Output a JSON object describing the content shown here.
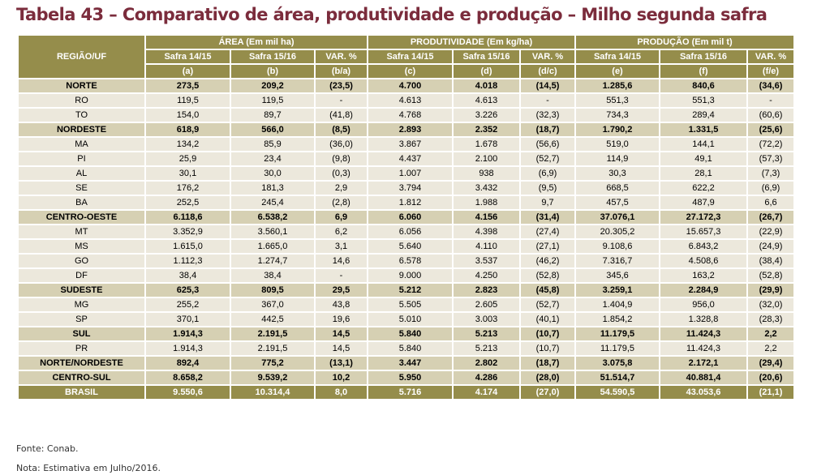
{
  "title": "Tabela 43 – Comparativo de área, produtividade e produção – Milho segunda safra",
  "header": {
    "region": "REGIÃO/UF",
    "groups": [
      "ÁREA (Em mil ha)",
      "PRODUTIVIDADE (Em kg/ha)",
      "PRODUÇÃO (Em mil t)"
    ],
    "subcols": [
      "Safra 14/15",
      "Safra 15/16",
      "VAR. %",
      "Safra 14/15",
      "Safra 15/16",
      "VAR. %",
      "Safra 14/15",
      "Safra 15/16",
      "VAR. %"
    ],
    "letters": [
      "(a)",
      "(b)",
      "(b/a)",
      "(c)",
      "(d)",
      "(d/c)",
      "(e)",
      "(f)",
      "(f/e)"
    ]
  },
  "rows": [
    {
      "type": "sub",
      "cells": [
        "NORTE",
        "273,5",
        "209,2",
        "(23,5)",
        "4.700",
        "4.018",
        "(14,5)",
        "1.285,6",
        "840,6",
        "(34,6)"
      ]
    },
    {
      "type": "uf",
      "cells": [
        "RO",
        "119,5",
        "119,5",
        "-",
        "4.613",
        "4.613",
        "-",
        "551,3",
        "551,3",
        "-"
      ]
    },
    {
      "type": "uf",
      "cells": [
        "TO",
        "154,0",
        "89,7",
        "(41,8)",
        "4.768",
        "3.226",
        "(32,3)",
        "734,3",
        "289,4",
        "(60,6)"
      ]
    },
    {
      "type": "sub",
      "cells": [
        "NORDESTE",
        "618,9",
        "566,0",
        "(8,5)",
        "2.893",
        "2.352",
        "(18,7)",
        "1.790,2",
        "1.331,5",
        "(25,6)"
      ]
    },
    {
      "type": "uf",
      "cells": [
        "MA",
        "134,2",
        "85,9",
        "(36,0)",
        "3.867",
        "1.678",
        "(56,6)",
        "519,0",
        "144,1",
        "(72,2)"
      ]
    },
    {
      "type": "uf",
      "cells": [
        "PI",
        "25,9",
        "23,4",
        "(9,8)",
        "4.437",
        "2.100",
        "(52,7)",
        "114,9",
        "49,1",
        "(57,3)"
      ]
    },
    {
      "type": "uf",
      "cells": [
        "AL",
        "30,1",
        "30,0",
        "(0,3)",
        "1.007",
        "938",
        "(6,9)",
        "30,3",
        "28,1",
        "(7,3)"
      ]
    },
    {
      "type": "uf",
      "cells": [
        "SE",
        "176,2",
        "181,3",
        "2,9",
        "3.794",
        "3.432",
        "(9,5)",
        "668,5",
        "622,2",
        "(6,9)"
      ]
    },
    {
      "type": "uf",
      "cells": [
        "BA",
        "252,5",
        "245,4",
        "(2,8)",
        "1.812",
        "1.988",
        "9,7",
        "457,5",
        "487,9",
        "6,6"
      ]
    },
    {
      "type": "sub",
      "cells": [
        "CENTRO-OESTE",
        "6.118,6",
        "6.538,2",
        "6,9",
        "6.060",
        "4.156",
        "(31,4)",
        "37.076,1",
        "27.172,3",
        "(26,7)"
      ]
    },
    {
      "type": "uf",
      "cells": [
        "MT",
        "3.352,9",
        "3.560,1",
        "6,2",
        "6.056",
        "4.398",
        "(27,4)",
        "20.305,2",
        "15.657,3",
        "(22,9)"
      ]
    },
    {
      "type": "uf",
      "cells": [
        "MS",
        "1.615,0",
        "1.665,0",
        "3,1",
        "5.640",
        "4.110",
        "(27,1)",
        "9.108,6",
        "6.843,2",
        "(24,9)"
      ]
    },
    {
      "type": "uf",
      "cells": [
        "GO",
        "1.112,3",
        "1.274,7",
        "14,6",
        "6.578",
        "3.537",
        "(46,2)",
        "7.316,7",
        "4.508,6",
        "(38,4)"
      ]
    },
    {
      "type": "uf",
      "cells": [
        "DF",
        "38,4",
        "38,4",
        "-",
        "9.000",
        "4.250",
        "(52,8)",
        "345,6",
        "163,2",
        "(52,8)"
      ]
    },
    {
      "type": "sub",
      "cells": [
        "SUDESTE",
        "625,3",
        "809,5",
        "29,5",
        "5.212",
        "2.823",
        "(45,8)",
        "3.259,1",
        "2.284,9",
        "(29,9)"
      ]
    },
    {
      "type": "uf",
      "cells": [
        "MG",
        "255,2",
        "367,0",
        "43,8",
        "5.505",
        "2.605",
        "(52,7)",
        "1.404,9",
        "956,0",
        "(32,0)"
      ]
    },
    {
      "type": "uf",
      "cells": [
        "SP",
        "370,1",
        "442,5",
        "19,6",
        "5.010",
        "3.003",
        "(40,1)",
        "1.854,2",
        "1.328,8",
        "(28,3)"
      ]
    },
    {
      "type": "sub",
      "cells": [
        "SUL",
        "1.914,3",
        "2.191,5",
        "14,5",
        "5.840",
        "5.213",
        "(10,7)",
        "11.179,5",
        "11.424,3",
        "2,2"
      ]
    },
    {
      "type": "uf",
      "cells": [
        "PR",
        "1.914,3",
        "2.191,5",
        "14,5",
        "5.840",
        "5.213",
        "(10,7)",
        "11.179,5",
        "11.424,3",
        "2,2"
      ]
    },
    {
      "type": "sub",
      "cells": [
        "NORTE/NORDESTE",
        "892,4",
        "775,2",
        "(13,1)",
        "3.447",
        "2.802",
        "(18,7)",
        "3.075,8",
        "2.172,1",
        "(29,4)"
      ]
    },
    {
      "type": "sub",
      "cells": [
        "CENTRO-SUL",
        "8.658,2",
        "9.539,2",
        "10,2",
        "5.950",
        "4.286",
        "(28,0)",
        "51.514,7",
        "40.881,4",
        "(20,6)"
      ]
    },
    {
      "type": "total",
      "cells": [
        "BRASIL",
        "9.550,6",
        "10.314,4",
        "8,0",
        "5.716",
        "4.174",
        "(27,0)",
        "54.590,5",
        "43.053,6",
        "(21,1)"
      ]
    }
  ],
  "source": "Fonte: Conab.",
  "note": "Nota: Estimativa em Julho/2016."
}
